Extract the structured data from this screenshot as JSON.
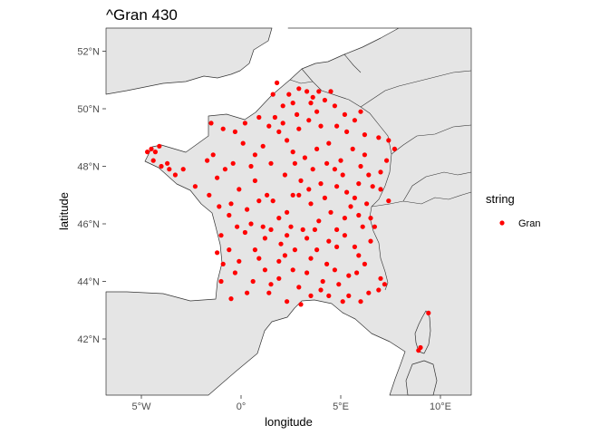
{
  "title": "^Gran 430",
  "axes": {
    "xlabel": "longitude",
    "ylabel": "latitude",
    "xticks": [
      {
        "value": -5,
        "label": "5°W"
      },
      {
        "value": 0,
        "label": "0°"
      },
      {
        "value": 5,
        "label": "5°E"
      },
      {
        "value": 10,
        "label": "10°E"
      }
    ],
    "yticks": [
      {
        "value": 42,
        "label": "42°N"
      },
      {
        "value": 44,
        "label": "44°N"
      },
      {
        "value": 46,
        "label": "46°N"
      },
      {
        "value": 48,
        "label": "48°N"
      },
      {
        "value": 50,
        "label": "50°N"
      },
      {
        "value": 52,
        "label": "52°N"
      }
    ]
  },
  "legend": {
    "title": "string",
    "items": [
      {
        "label": "Gran",
        "color": "#ff0000"
      }
    ]
  },
  "colors": {
    "land": "#e5e5e5",
    "sea": "#ffffff",
    "border": "#333333",
    "point": "#ff0000"
  },
  "chart_data": {
    "type": "scatter",
    "title": "^Gran 430",
    "xlabel": "longitude",
    "ylabel": "latitude",
    "xlim": [
      -6.8,
      11.6
    ],
    "ylim": [
      40.0,
      52.8
    ],
    "grid": false,
    "legend_position": "right",
    "series": [
      {
        "name": "Gran",
        "color": "#ff0000",
        "points": [
          [
            -4.7,
            48.5
          ],
          [
            -4.5,
            48.6
          ],
          [
            -4.3,
            48.5
          ],
          [
            -4.1,
            48.7
          ],
          [
            -4.4,
            48.2
          ],
          [
            -4.0,
            48.0
          ],
          [
            -3.7,
            48.1
          ],
          [
            -3.3,
            47.7
          ],
          [
            -3.6,
            47.9
          ],
          [
            -2.9,
            47.9
          ],
          [
            -2.3,
            47.3
          ],
          [
            -1.7,
            48.2
          ],
          [
            -1.4,
            48.4
          ],
          [
            -1.2,
            47.6
          ],
          [
            -0.8,
            47.9
          ],
          [
            -1.6,
            47.0
          ],
          [
            -1.1,
            46.6
          ],
          [
            -0.6,
            46.3
          ],
          [
            -1.0,
            45.6
          ],
          [
            -1.2,
            45.0
          ],
          [
            -0.6,
            45.1
          ],
          [
            -0.9,
            44.6
          ],
          [
            -1.0,
            44.0
          ],
          [
            -0.3,
            44.3
          ],
          [
            -0.5,
            43.4
          ],
          [
            0.3,
            43.6
          ],
          [
            1.4,
            43.6
          ],
          [
            2.3,
            43.3
          ],
          [
            3.0,
            43.2
          ],
          [
            3.5,
            43.5
          ],
          [
            4.0,
            43.7
          ],
          [
            4.4,
            43.5
          ],
          [
            5.1,
            43.3
          ],
          [
            5.4,
            43.5
          ],
          [
            6.0,
            43.3
          ],
          [
            6.9,
            43.7
          ],
          [
            7.2,
            43.9
          ],
          [
            7.0,
            44.1
          ],
          [
            6.2,
            44.6
          ],
          [
            5.7,
            45.2
          ],
          [
            6.1,
            45.9
          ],
          [
            6.7,
            45.9
          ],
          [
            5.9,
            46.3
          ],
          [
            6.5,
            46.2
          ],
          [
            5.2,
            46.2
          ],
          [
            4.8,
            45.8
          ],
          [
            4.8,
            45.2
          ],
          [
            4.4,
            45.4
          ],
          [
            3.8,
            45.1
          ],
          [
            3.1,
            45.8
          ],
          [
            2.5,
            45.9
          ],
          [
            2.0,
            45.3
          ],
          [
            1.5,
            45.8
          ],
          [
            1.2,
            45.5
          ],
          [
            0.7,
            45.1
          ],
          [
            0.2,
            45.7
          ],
          [
            0.3,
            46.5
          ],
          [
            0.9,
            46.8
          ],
          [
            1.6,
            46.8
          ],
          [
            2.3,
            46.4
          ],
          [
            2.9,
            47.0
          ],
          [
            3.5,
            46.7
          ],
          [
            4.2,
            46.9
          ],
          [
            4.8,
            47.3
          ],
          [
            5.3,
            47.1
          ],
          [
            5.9,
            47.4
          ],
          [
            6.4,
            47.7
          ],
          [
            7.0,
            47.8
          ],
          [
            7.3,
            48.2
          ],
          [
            7.7,
            48.6
          ],
          [
            7.4,
            48.9
          ],
          [
            6.9,
            49.0
          ],
          [
            6.2,
            49.1
          ],
          [
            5.7,
            49.6
          ],
          [
            6.0,
            49.9
          ],
          [
            5.2,
            49.8
          ],
          [
            4.7,
            50.1
          ],
          [
            4.2,
            50.3
          ],
          [
            3.6,
            50.4
          ],
          [
            3.3,
            50.6
          ],
          [
            2.9,
            50.7
          ],
          [
            2.4,
            50.5
          ],
          [
            1.8,
            50.9
          ],
          [
            1.6,
            50.5
          ],
          [
            2.1,
            50.1
          ],
          [
            2.8,
            49.8
          ],
          [
            3.4,
            49.6
          ],
          [
            4.0,
            49.4
          ],
          [
            4.8,
            49.4
          ],
          [
            5.3,
            49.2
          ],
          [
            4.4,
            48.8
          ],
          [
            3.8,
            48.6
          ],
          [
            3.2,
            48.3
          ],
          [
            2.6,
            48.5
          ],
          [
            2.3,
            48.9
          ],
          [
            1.9,
            49.2
          ],
          [
            1.4,
            49.4
          ],
          [
            0.9,
            49.7
          ],
          [
            0.2,
            49.5
          ],
          [
            -0.3,
            49.2
          ],
          [
            -0.9,
            49.3
          ],
          [
            -1.5,
            49.5
          ],
          [
            0.1,
            48.8
          ],
          [
            0.7,
            48.4
          ],
          [
            1.5,
            48.1
          ],
          [
            2.2,
            47.7
          ],
          [
            3.0,
            47.5
          ],
          [
            3.6,
            47.9
          ],
          [
            4.3,
            48.1
          ],
          [
            5.0,
            48.2
          ],
          [
            5.6,
            48.6
          ],
          [
            6.2,
            48.4
          ],
          [
            6.6,
            47.3
          ],
          [
            5.5,
            46.6
          ],
          [
            4.5,
            46.4
          ],
          [
            3.9,
            46.1
          ],
          [
            3.3,
            45.5
          ],
          [
            2.7,
            45.1
          ],
          [
            1.9,
            44.7
          ],
          [
            1.2,
            44.4
          ],
          [
            0.6,
            44.0
          ],
          [
            1.9,
            44.1
          ],
          [
            2.6,
            44.4
          ],
          [
            3.3,
            44.3
          ],
          [
            4.1,
            44.0
          ],
          [
            4.7,
            44.4
          ],
          [
            5.4,
            44.2
          ],
          [
            5.9,
            44.9
          ],
          [
            6.5,
            45.4
          ],
          [
            7.4,
            46.8
          ],
          [
            7.0,
            47.2
          ],
          [
            6.0,
            48.0
          ],
          [
            5.1,
            47.7
          ],
          [
            4.0,
            47.4
          ],
          [
            2.6,
            47.0
          ],
          [
            1.9,
            46.2
          ],
          [
            1.1,
            45.9
          ],
          [
            0.5,
            46.0
          ],
          [
            -0.2,
            45.9
          ],
          [
            -0.5,
            46.7
          ],
          [
            -0.1,
            47.2
          ],
          [
            0.7,
            47.5
          ],
          [
            1.3,
            47.0
          ],
          [
            0.5,
            48.0
          ],
          [
            -0.4,
            48.1
          ],
          [
            1.1,
            48.7
          ],
          [
            1.7,
            49.7
          ],
          [
            2.9,
            49.3
          ],
          [
            3.8,
            49.9
          ],
          [
            4.5,
            50.6
          ],
          [
            3.9,
            50.6
          ],
          [
            3.5,
            50.2
          ],
          [
            2.6,
            50.2
          ],
          [
            2.1,
            49.5
          ],
          [
            2.7,
            48.1
          ],
          [
            3.4,
            47.2
          ],
          [
            4.7,
            47.9
          ],
          [
            5.7,
            46.9
          ],
          [
            6.3,
            46.7
          ],
          [
            5.2,
            45.6
          ],
          [
            3.7,
            45.8
          ],
          [
            2.3,
            45.6
          ],
          [
            0.9,
            44.8
          ],
          [
            -0.1,
            44.7
          ],
          [
            1.5,
            43.9
          ],
          [
            2.9,
            43.8
          ],
          [
            4.9,
            43.9
          ],
          [
            6.4,
            43.6
          ],
          [
            5.8,
            44.3
          ],
          [
            4.3,
            44.6
          ],
          [
            3.5,
            44.8
          ],
          [
            2.2,
            44.9
          ],
          [
            9.0,
            41.7
          ],
          [
            9.4,
            42.9
          ],
          [
            8.9,
            41.6
          ]
        ]
      }
    ]
  }
}
